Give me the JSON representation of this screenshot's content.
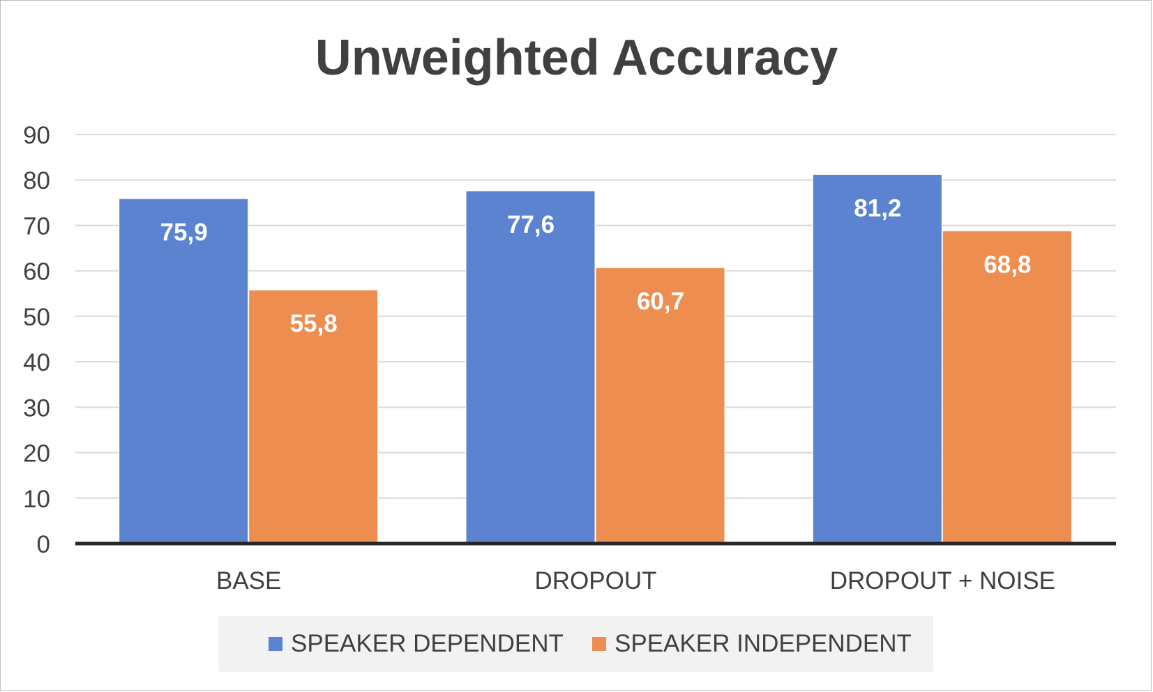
{
  "chart_data": {
    "type": "bar",
    "title": "Unweighted Accuracy",
    "categories": [
      "BASE",
      "DROPOUT",
      "DROPOUT + NOISE"
    ],
    "series": [
      {
        "name": "SPEAKER DEPENDENT",
        "values": [
          75.9,
          77.6,
          81.2
        ],
        "labels": [
          "75,9",
          "77,6",
          "81,2"
        ],
        "color": "#5b83cf"
      },
      {
        "name": "SPEAKER INDEPENDENT",
        "values": [
          55.8,
          60.7,
          68.8
        ],
        "labels": [
          "55,8",
          "60,7",
          "68,8"
        ],
        "color": "#ee8d50"
      }
    ],
    "yticks": [
      "0",
      "10",
      "20",
      "30",
      "40",
      "50",
      "60",
      "70",
      "80",
      "90"
    ],
    "ylim": [
      0,
      90
    ],
    "grid": true,
    "legend": "bottom"
  }
}
